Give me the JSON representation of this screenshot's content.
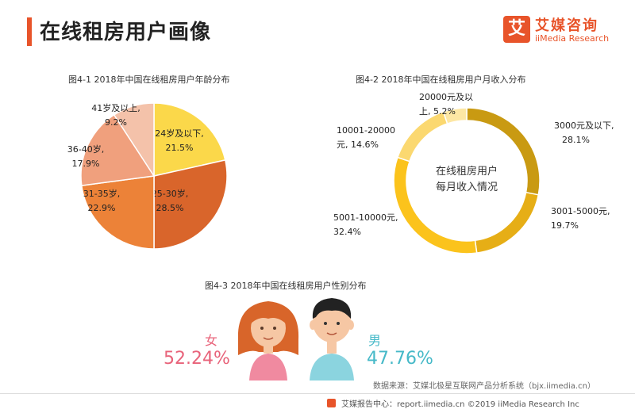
{
  "header": {
    "title": "在线租房用户画像",
    "logo_mark": "艾",
    "logo_cn": "艾媒咨询",
    "logo_en": "iiMedia Research"
  },
  "colors": {
    "accent": "#e8542a"
  },
  "chart_data": [
    {
      "type": "pie",
      "title": "图4-1 2018年中国在线租房用户年龄分布",
      "slices": [
        {
          "label_lines": [
            "24岁及以下,",
            "21.5%"
          ],
          "category": "24岁及以下",
          "value": 21.5,
          "color": "#fbd84a"
        },
        {
          "label_lines": [
            "25-30岁,",
            "28.5%"
          ],
          "category": "25-30岁",
          "value": 28.5,
          "color": "#d9652b"
        },
        {
          "label_lines": [
            "31-35岁,",
            "22.9%"
          ],
          "category": "31-35岁",
          "value": 22.9,
          "color": "#ec8238"
        },
        {
          "label_lines": [
            "36-40岁,",
            "17.9%"
          ],
          "category": "36-40岁",
          "value": 17.9,
          "color": "#f0a07d"
        },
        {
          "label_lines": [
            "41岁及以上,",
            "9.2%"
          ],
          "category": "41岁及以上",
          "value": 9.2,
          "color": "#f4c2aa"
        }
      ]
    },
    {
      "type": "pie",
      "title": "图4-2 2018年中国在线租房用户月收入分布",
      "center_lines": [
        "在线租房用户",
        "每月收入情况"
      ],
      "slices": [
        {
          "label_lines": [
            "3000元及以下,",
            "28.1%"
          ],
          "category": "3000元及以下",
          "value": 28.1,
          "color": "#c99a12"
        },
        {
          "label_lines": [
            "3001-5000元,",
            "19.7%"
          ],
          "category": "3001-5000元",
          "value": 19.7,
          "color": "#e6ae16"
        },
        {
          "label_lines": [
            "5001-10000元,",
            "32.4%"
          ],
          "category": "5001-10000元",
          "value": 32.4,
          "color": "#fbc31c"
        },
        {
          "label_lines": [
            "10001-20000",
            "元, 14.6%"
          ],
          "category": "10001-20000元",
          "value": 14.6,
          "color": "#fbd870"
        },
        {
          "label_lines": [
            "20000元及以",
            "上, 5.2%"
          ],
          "category": "20000元及以上",
          "value": 5.2,
          "color": "#fde7a4"
        }
      ]
    },
    {
      "type": "table",
      "title": "图4-3 2018年中国在线租房用户性别分布",
      "rows": [
        {
          "label": "女",
          "value": "52.24%",
          "color": "#e8637a"
        },
        {
          "label": "男",
          "value": "47.76%",
          "color": "#46b9c8"
        }
      ]
    }
  ],
  "source": "数据来源：艾媒北极星互联网产品分析系统（bjx.iimedia.cn）",
  "footer": "艾媒报告中心：report.iimedia.cn ©2019 iiMedia Research Inc"
}
